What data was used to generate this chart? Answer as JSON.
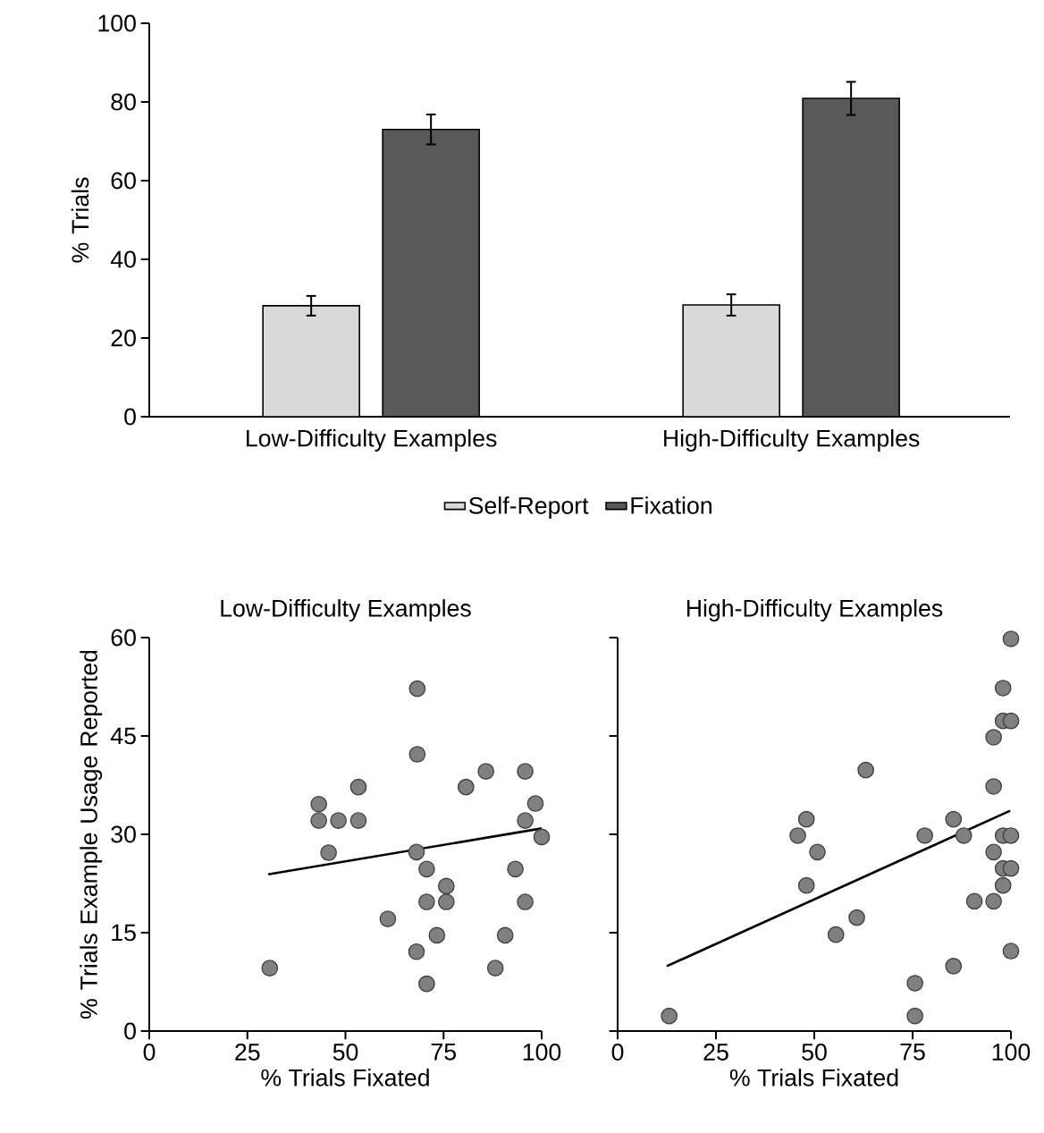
{
  "chart_data": [
    {
      "type": "bar",
      "ylabel": "% Trials",
      "categories": [
        "Low-Difficulty Examples",
        "High-Difficulty Examples"
      ],
      "series": [
        {
          "name": "Self-Report",
          "color": "#d9d9d9",
          "values": [
            28.2,
            28.4
          ],
          "errors": [
            2.5,
            2.7
          ]
        },
        {
          "name": "Fixation",
          "color": "#595959",
          "values": [
            73.0,
            80.9
          ],
          "errors": [
            3.8,
            4.2
          ]
        }
      ],
      "ylim": [
        0,
        100
      ],
      "yticks": [
        0,
        20,
        40,
        60,
        80,
        100
      ],
      "legend": "bottom"
    },
    {
      "type": "scatter",
      "title": "Low-Difficulty Examples",
      "xlabel": "% Trials Fixated",
      "ylabel": "% Trials Example Usage Reported",
      "series": [
        {
          "type": "scatter",
          "marker": "circle",
          "color": "#808080",
          "x": [
            30.7,
            43.2,
            43.2,
            48.2,
            53.3,
            53.3,
            45.7,
            68.3,
            68.3,
            68.1,
            70.7,
            75.7,
            70.7,
            75.7,
            60.8,
            73.3,
            68.1,
            70.7,
            80.7,
            85.8,
            95.8,
            98.4,
            95.8,
            100,
            93.3,
            95.8,
            90.7,
            88.2
          ],
          "values": [
            9.6,
            34.6,
            32.1,
            32.1,
            37.2,
            32.1,
            27.2,
            52.2,
            42.2,
            27.3,
            24.7,
            22.1,
            19.7,
            19.7,
            17.1,
            14.6,
            12.1,
            7.2,
            37.2,
            39.6,
            39.6,
            34.7,
            32.1,
            29.6,
            24.7,
            19.7,
            14.6,
            9.6
          ]
        },
        {
          "type": "line",
          "marker": "none",
          "color": "#000000",
          "x": [
            30.3,
            100
          ],
          "values": [
            23.9,
            30.9
          ]
        }
      ],
      "xlim": [
        0,
        100
      ],
      "ylim": [
        0,
        60
      ],
      "xticks": [
        0,
        25,
        50,
        75,
        100
      ],
      "yticks": [
        0,
        15,
        30,
        45,
        60
      ]
    },
    {
      "type": "scatter",
      "title": "High-Difficulty Examples",
      "xlabel": "% Trials Fixated",
      "tick_labels": "x",
      "series": [
        {
          "type": "scatter",
          "marker": "circle",
          "color": "#808080",
          "x": [
            13.1,
            45.8,
            48.0,
            50.8,
            48.0,
            55.5,
            60.8,
            63.1,
            75.6,
            75.6,
            78.1,
            85.4,
            85.4,
            88.0,
            90.7,
            95.6,
            95.6,
            95.6,
            95.6,
            98.0,
            98.0,
            100,
            100,
            98.0,
            100,
            98.0,
            100,
            98.0,
            100
          ],
          "values": [
            2.3,
            29.8,
            32.3,
            27.3,
            22.2,
            14.7,
            17.3,
            39.8,
            7.3,
            2.3,
            29.8,
            32.3,
            9.9,
            29.8,
            19.8,
            19.8,
            27.3,
            37.3,
            44.8,
            52.3,
            47.3,
            47.3,
            59.8,
            29.8,
            29.8,
            24.8,
            24.8,
            22.2,
            12.2
          ]
        },
        {
          "type": "line",
          "marker": "none",
          "color": "#000000",
          "x": [
            12.5,
            99.8
          ],
          "values": [
            9.9,
            33.6
          ]
        }
      ],
      "xlim": [
        0,
        100
      ],
      "ylim": [
        0,
        60
      ],
      "xticks": [
        0,
        25,
        50,
        75,
        100
      ],
      "yticks": [
        0,
        15,
        30,
        45,
        60
      ]
    }
  ]
}
